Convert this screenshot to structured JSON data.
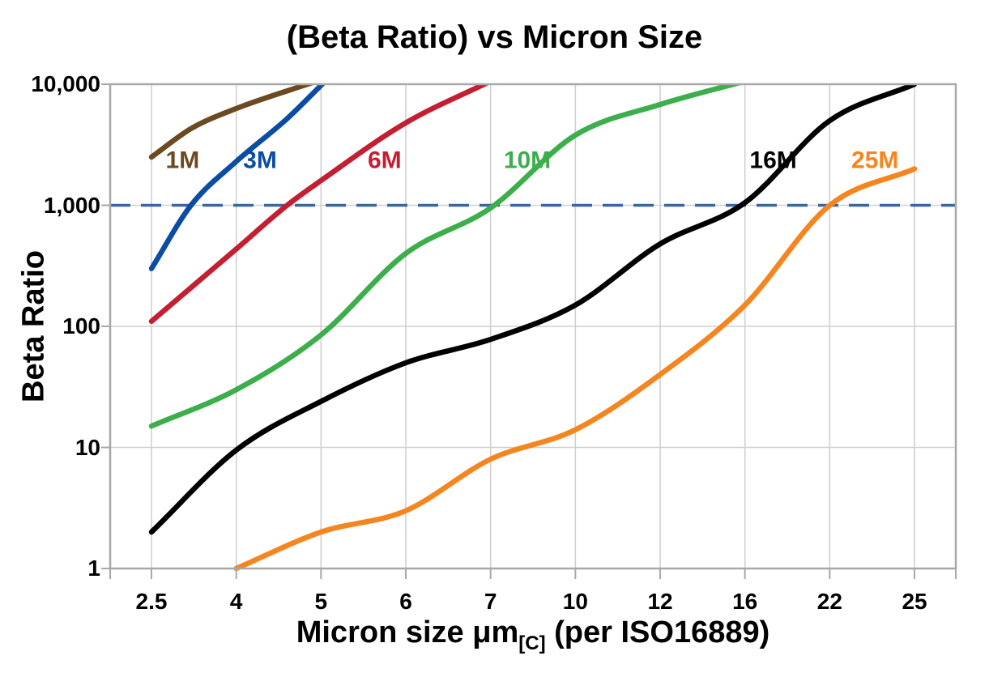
{
  "title": "(Beta Ratio) vs Micron Size",
  "y_axis": {
    "label": "Beta Ratio",
    "tick_labels": [
      "10,000",
      "1,000",
      "100",
      "10",
      "1"
    ]
  },
  "x_axis": {
    "label_main": "Micron size μm",
    "label_sub": "[C]",
    "label_rest": " (per ISO16889)",
    "tick_labels": [
      "2.5",
      "4",
      "5",
      "6",
      "7",
      "10",
      "12",
      "16",
      "22",
      "25"
    ]
  },
  "colors": {
    "background": "#FFFFFF",
    "text": "#000000",
    "frame": "#A8A8A8",
    "grid": "#D0D0D0",
    "reference_dashed": "#3A67A4"
  },
  "chart_data": {
    "type": "line",
    "title": "(Beta Ratio) vs Micron Size",
    "xlabel": "Micron size μm[C] (per ISO16889)",
    "ylabel": "Beta Ratio",
    "x_scale": "categorical-equal-spacing",
    "x_ticks": [
      2.5,
      4,
      5,
      6,
      7,
      10,
      12,
      16,
      22,
      25
    ],
    "y_scale": "log10",
    "ylim": [
      1,
      10000
    ],
    "y_ticks": [
      10000,
      1000,
      100,
      10,
      1
    ],
    "grid": true,
    "legend_position": "inline-labels-on-plot",
    "reference_line": {
      "value": 1000,
      "style": "dashed",
      "color": "#3A67A4"
    },
    "series": [
      {
        "name": "1M",
        "color": "#6B4A21",
        "label_at": {
          "x": 3.05,
          "y": 2400
        },
        "points": [
          [
            2.5,
            2500
          ],
          [
            3.2,
            4300
          ],
          [
            4,
            6300
          ],
          [
            4.95,
            10600
          ]
        ]
      },
      {
        "name": "3M",
        "color": "#0B4DA2",
        "label_at": {
          "x": 4.28,
          "y": 2400
        },
        "points": [
          [
            2.5,
            300
          ],
          [
            3.2,
            1000
          ],
          [
            4,
            2300
          ],
          [
            4.6,
            5200
          ],
          [
            5.05,
            10600
          ]
        ]
      },
      {
        "name": "6M",
        "color": "#C41E31",
        "label_at": {
          "x": 5.75,
          "y": 2400
        },
        "points": [
          [
            2.5,
            110
          ],
          [
            4,
            435
          ],
          [
            4.6,
            1000
          ],
          [
            5,
            1600
          ],
          [
            6,
            4800
          ],
          [
            7,
            10600
          ]
        ]
      },
      {
        "name": "10M",
        "color": "#3CAE4B",
        "label_at": {
          "x": 8.3,
          "y": 2400
        },
        "points": [
          [
            2.5,
            15
          ],
          [
            4,
            30
          ],
          [
            5,
            85
          ],
          [
            6,
            400
          ],
          [
            7,
            950
          ],
          [
            10,
            3800
          ],
          [
            12,
            6800
          ],
          [
            16,
            10600
          ]
        ]
      },
      {
        "name": "16M",
        "color": "#000000",
        "label_at": {
          "x": 18,
          "y": 2400
        },
        "points": [
          [
            2.5,
            2
          ],
          [
            4,
            9.5
          ],
          [
            5,
            24
          ],
          [
            6,
            50
          ],
          [
            7,
            78
          ],
          [
            10,
            150
          ],
          [
            12,
            480
          ],
          [
            16,
            1050
          ],
          [
            22,
            5000
          ],
          [
            25,
            10000
          ]
        ]
      },
      {
        "name": "25M",
        "color": "#F5861F",
        "label_at": {
          "x": 23.6,
          "y": 2400
        },
        "points": [
          [
            4,
            1
          ],
          [
            5,
            2
          ],
          [
            6,
            3
          ],
          [
            7,
            8
          ],
          [
            10,
            14
          ],
          [
            12,
            40
          ],
          [
            16,
            150
          ],
          [
            22,
            1000
          ],
          [
            25,
            2000
          ]
        ]
      }
    ]
  }
}
